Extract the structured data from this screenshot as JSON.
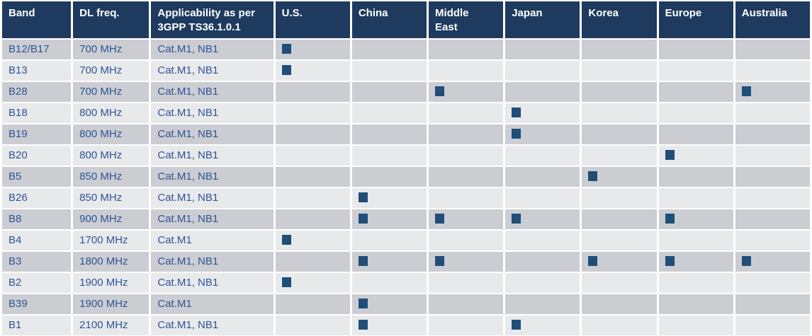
{
  "colors": {
    "header_bg": "#1e3a5f",
    "header_text": "#ffffff",
    "row_odd": "#cbcdd3",
    "row_even": "#e8e9eb",
    "text": "#2f5496",
    "marker": "#1f4e79"
  },
  "table": {
    "columns": [
      {
        "key": "band",
        "label": "Band",
        "type": "text"
      },
      {
        "key": "dl_freq",
        "label": "DL freq.",
        "type": "text"
      },
      {
        "key": "applicability",
        "label": "Applicability as per 3GPP TS36.1.0.1",
        "type": "text"
      },
      {
        "key": "us",
        "label": "U.S.",
        "type": "region"
      },
      {
        "key": "china",
        "label": "China",
        "type": "region"
      },
      {
        "key": "middle_east",
        "label": "Middle East",
        "type": "region"
      },
      {
        "key": "japan",
        "label": "Japan",
        "type": "region"
      },
      {
        "key": "korea",
        "label": "Korea",
        "type": "region"
      },
      {
        "key": "europe",
        "label": "Europe",
        "type": "region"
      },
      {
        "key": "australia",
        "label": "Australia",
        "type": "region"
      }
    ],
    "marker_icon": "applicable-marker-icon",
    "rows": [
      {
        "band": "B12/B17",
        "dl_freq": "700 MHz",
        "applicability": "Cat.M1, NB1",
        "regions": [
          "us"
        ]
      },
      {
        "band": "B13",
        "dl_freq": "700 MHz",
        "applicability": "Cat.M1, NB1",
        "regions": [
          "us"
        ]
      },
      {
        "band": "B28",
        "dl_freq": "700 MHz",
        "applicability": "Cat.M1, NB1",
        "regions": [
          "middle_east",
          "australia"
        ]
      },
      {
        "band": "B18",
        "dl_freq": "800 MHz",
        "applicability": "Cat.M1, NB1",
        "regions": [
          "japan"
        ]
      },
      {
        "band": "B19",
        "dl_freq": "800 MHz",
        "applicability": "Cat.M1, NB1",
        "regions": [
          "japan"
        ]
      },
      {
        "band": "B20",
        "dl_freq": "800 MHz",
        "applicability": "Cat.M1, NB1",
        "regions": [
          "europe"
        ]
      },
      {
        "band": "B5",
        "dl_freq": "850 MHz",
        "applicability": "Cat.M1, NB1",
        "regions": [
          "korea"
        ]
      },
      {
        "band": "B26",
        "dl_freq": "850 MHz",
        "applicability": "Cat.M1, NB1",
        "regions": [
          "china"
        ]
      },
      {
        "band": "B8",
        "dl_freq": "900 MHz",
        "applicability": "Cat.M1, NB1",
        "regions": [
          "china",
          "middle_east",
          "japan",
          "europe"
        ]
      },
      {
        "band": "B4",
        "dl_freq": "1700 MHz",
        "applicability": "Cat.M1",
        "regions": [
          "us"
        ]
      },
      {
        "band": "B3",
        "dl_freq": "1800 MHz",
        "applicability": "Cat.M1, NB1",
        "regions": [
          "china",
          "middle_east",
          "korea",
          "europe",
          "australia"
        ]
      },
      {
        "band": "B2",
        "dl_freq": "1900 MHz",
        "applicability": "Cat.M1, NB1",
        "regions": [
          "us"
        ]
      },
      {
        "band": "B39",
        "dl_freq": "1900 MHz",
        "applicability": "Cat.M1",
        "regions": [
          "china"
        ]
      },
      {
        "band": "B1",
        "dl_freq": "2100 MHz",
        "applicability": "Cat.M1, NB1",
        "regions": [
          "china",
          "japan"
        ]
      }
    ]
  }
}
